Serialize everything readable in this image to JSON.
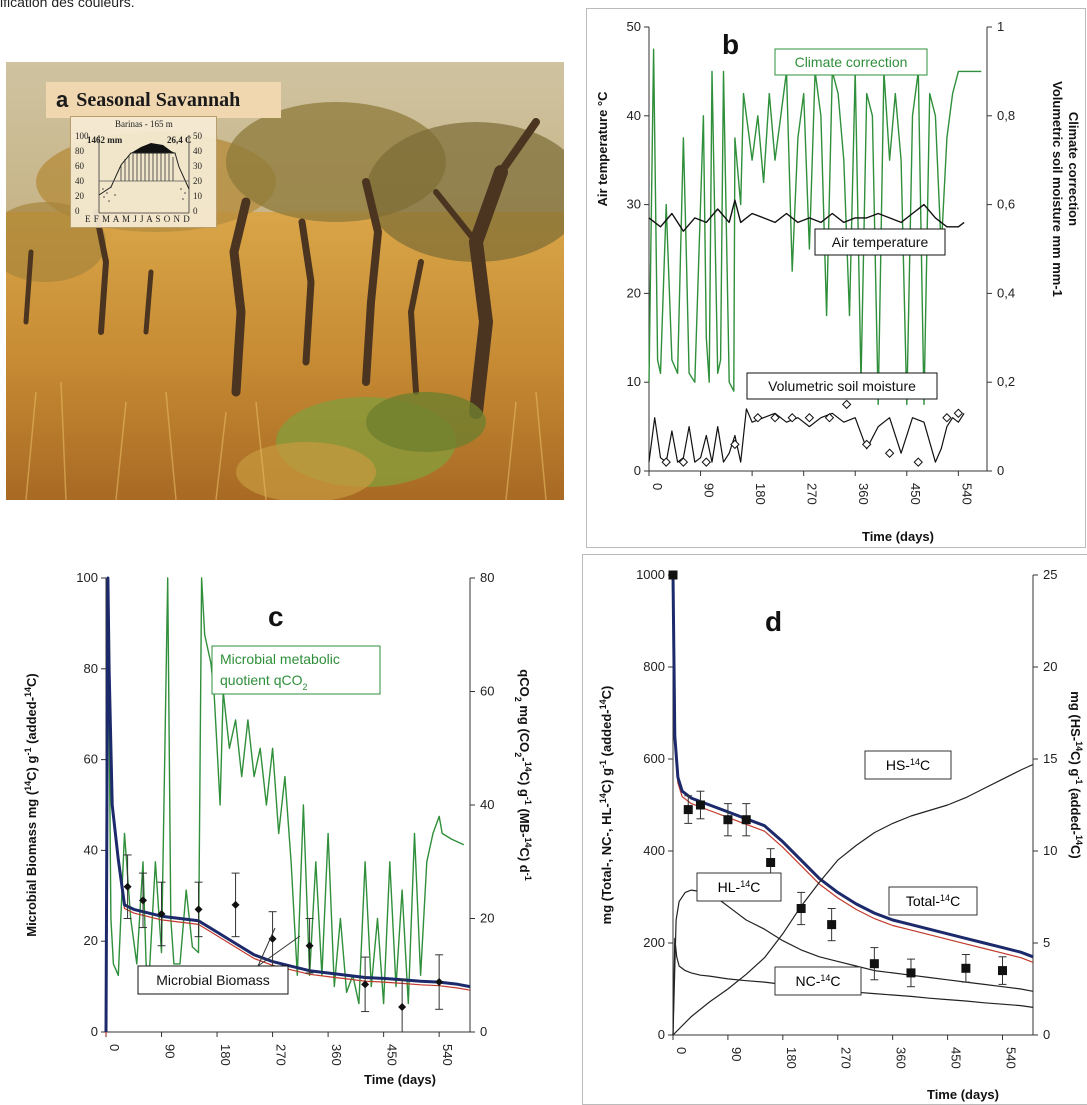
{
  "caption": "ification des couleurs.",
  "panel_a": {
    "letter": "a",
    "title": "Seasonal Savannah",
    "climate_station": "Barinas - 165 m",
    "climate_precip": "1462 mm",
    "climate_temp": "26,4 C",
    "climate_left_ticks": [
      "100",
      "80",
      "60",
      "40",
      "20",
      "0"
    ],
    "climate_right_ticks": [
      "50",
      "40",
      "30",
      "20",
      "10",
      "0"
    ],
    "climate_months": "E F M A M J J A S O N D"
  },
  "chart_data": [
    {
      "id": "b",
      "type": "line",
      "letter": "b",
      "xlabel": "Time (days)",
      "ylabel_left": "Air temperature °C",
      "ylabel_right_1": "Volumetric soil moisture mm mm-1",
      "ylabel_right_2": "Climate correction",
      "xlim": [
        0,
        590
      ],
      "ylim_left": [
        0,
        50
      ],
      "ylim_right": [
        0,
        1
      ],
      "xticks": [
        "0",
        "90",
        "180",
        "270",
        "360",
        "450",
        "540"
      ],
      "yticks_left": [
        "0",
        "10",
        "20",
        "30",
        "40",
        "50"
      ],
      "yticks_right": [
        "0",
        "0,2",
        "0,4",
        "0,6",
        "0,8",
        "1"
      ],
      "colors": {
        "climate": "#2f8f3a",
        "temperature": "#111111",
        "moisture": "#111111"
      },
      "labels": {
        "climate": "Climate correction",
        "temperature": "Air temperature",
        "moisture": "Volumetric soil moisture"
      },
      "series": [
        {
          "key": "climate",
          "x": [
            0,
            8,
            15,
            20,
            30,
            40,
            50,
            60,
            65,
            70,
            80,
            95,
            100,
            105,
            110,
            120,
            125,
            130,
            140,
            148,
            150,
            160,
            165,
            170,
            175,
            180,
            190,
            200,
            210,
            220,
            230,
            240,
            250,
            260,
            270,
            280,
            290,
            300,
            310,
            320,
            330,
            340,
            350,
            360,
            370,
            380,
            390,
            400,
            410,
            420,
            430,
            440,
            450,
            460,
            470,
            480,
            490,
            500,
            510,
            520,
            530,
            540,
            545,
            560,
            580
          ],
          "y": [
            0.2,
            0.95,
            0.25,
            0.22,
            0.6,
            0.25,
            0.22,
            0.75,
            0.5,
            0.22,
            0.2,
            0.8,
            0.3,
            0.2,
            0.9,
            0.22,
            0.25,
            0.9,
            0.2,
            0.18,
            0.75,
            0.6,
            0.85,
            0.8,
            0.75,
            0.7,
            0.8,
            0.65,
            0.85,
            0.7,
            0.8,
            0.9,
            0.45,
            0.75,
            0.85,
            0.5,
            0.9,
            0.8,
            0.35,
            0.9,
            0.85,
            0.7,
            0.35,
            0.9,
            0.2,
            0.85,
            0.8,
            0.15,
            0.9,
            0.7,
            0.85,
            0.7,
            0.15,
            0.8,
            0.9,
            0.15,
            0.85,
            0.8,
            0.5,
            0.75,
            0.85,
            0.9,
            0.9,
            0.9,
            0.9
          ]
        },
        {
          "key": "temperature",
          "x": [
            0,
            20,
            40,
            60,
            80,
            100,
            120,
            140,
            150,
            160,
            180,
            200,
            220,
            240,
            260,
            280,
            300,
            320,
            340,
            360,
            380,
            400,
            420,
            440,
            460,
            480,
            500,
            520,
            540,
            550
          ],
          "y": [
            28.5,
            27.5,
            29,
            27,
            28.5,
            28,
            29.5,
            28,
            30.5,
            28,
            29,
            28.5,
            28,
            29,
            28,
            28.5,
            28,
            29,
            28,
            28.5,
            28.5,
            29,
            28.5,
            28,
            29,
            30,
            28.5,
            27.5,
            27.5,
            28
          ]
        },
        {
          "key": "moisture",
          "x": [
            0,
            10,
            20,
            30,
            40,
            50,
            60,
            70,
            80,
            90,
            100,
            110,
            120,
            130,
            140,
            150,
            160,
            170,
            180,
            200,
            220,
            240,
            260,
            280,
            300,
            320,
            340,
            360,
            380,
            400,
            420,
            440,
            460,
            480,
            500,
            510,
            520,
            530,
            540,
            550
          ],
          "y": [
            0.02,
            0.12,
            0.03,
            0.02,
            0.09,
            0.02,
            0.03,
            0.1,
            0.02,
            0.03,
            0.08,
            0.02,
            0.1,
            0.02,
            0.04,
            0.08,
            0.02,
            0.14,
            0.11,
            0.12,
            0.13,
            0.11,
            0.12,
            0.1,
            0.12,
            0.13,
            0.11,
            0.12,
            0.05,
            0.1,
            0.12,
            0.04,
            0.12,
            0.11,
            0.02,
            0.05,
            0.1,
            0.12,
            0.11,
            0.13
          ]
        }
      ],
      "markers_moisture": {
        "x": [
          30,
          60,
          100,
          150,
          190,
          220,
          250,
          280,
          315,
          345,
          380,
          420,
          470,
          520,
          540
        ],
        "y": [
          0.02,
          0.02,
          0.02,
          0.06,
          0.12,
          0.12,
          0.12,
          0.12,
          0.12,
          0.15,
          0.06,
          0.04,
          0.02,
          0.12,
          0.13
        ]
      }
    },
    {
      "id": "c",
      "type": "line",
      "letter": "c",
      "xlabel": "Time (days)",
      "ylabel_left": "Microbial Biomass mg (14C) g-1 (added-14C)",
      "ylabel_right": "qCO2 mg (CO2-14C) g-1 (MB-14C) d-1",
      "xlim": [
        0,
        590
      ],
      "ylim_left": [
        0,
        100
      ],
      "ylim_right": [
        0,
        80
      ],
      "xticks": [
        "0",
        "90",
        "180",
        "270",
        "360",
        "450",
        "540"
      ],
      "yticks_left": [
        "0",
        "20",
        "40",
        "60",
        "80",
        "100"
      ],
      "yticks_right": [
        "0",
        "20",
        "40",
        "60",
        "80"
      ],
      "colors": {
        "qco2": "#2f8f3a",
        "biomass": "#1c2a6b",
        "biomass_alt": "#c0392b"
      },
      "labels": {
        "qco2": "Microbial metabolic quotient qCO2",
        "biomass": "Microbial Biomass"
      },
      "series": [
        {
          "key": "qco2",
          "x": [
            0,
            3,
            8,
            12,
            20,
            30,
            40,
            50,
            60,
            65,
            70,
            80,
            90,
            100,
            105,
            110,
            120,
            130,
            140,
            150,
            155,
            160,
            170,
            175,
            180,
            185,
            190,
            200,
            210,
            220,
            230,
            240,
            250,
            260,
            270,
            280,
            290,
            300,
            310,
            320,
            330,
            340,
            350,
            360,
            370,
            380,
            390,
            400,
            410,
            420,
            430,
            440,
            450,
            460,
            470,
            480,
            490,
            500,
            510,
            520,
            530,
            540,
            545,
            560,
            580
          ],
          "y": [
            0,
            80,
            20,
            12,
            10,
            35,
            20,
            12,
            30,
            12,
            10,
            30,
            14,
            80,
            20,
            12,
            12,
            25,
            15,
            14,
            80,
            70,
            65,
            60,
            50,
            40,
            60,
            50,
            55,
            45,
            55,
            45,
            50,
            40,
            50,
            35,
            45,
            30,
            10,
            40,
            10,
            30,
            10,
            35,
            8,
            20,
            7,
            10,
            5,
            30,
            8,
            20,
            5,
            30,
            8,
            25,
            5,
            35,
            10,
            30,
            35,
            38,
            35,
            34,
            33
          ]
        },
        {
          "key": "biomass",
          "x": [
            0,
            3,
            5,
            10,
            20,
            30,
            45,
            60,
            90,
            120,
            150,
            180,
            210,
            240,
            270,
            300,
            330,
            360,
            390,
            420,
            450,
            480,
            510,
            540,
            570,
            590
          ],
          "y": [
            0,
            100,
            80,
            50,
            38,
            28,
            27,
            26.5,
            25.5,
            25,
            24.5,
            22,
            19.5,
            17,
            15.5,
            14.5,
            13.5,
            13,
            12.5,
            12,
            11.8,
            11.5,
            11.2,
            11,
            10.5,
            10
          ]
        }
      ],
      "errorbars": {
        "x": [
          35,
          60,
          90,
          150,
          210,
          270,
          330,
          420,
          480,
          540
        ],
        "y": [
          32,
          29,
          26,
          27,
          28,
          20.5,
          19,
          10.5,
          5.5,
          11
        ],
        "err": [
          7,
          6,
          7,
          6,
          7,
          6,
          6,
          6,
          6,
          6
        ]
      }
    },
    {
      "id": "d",
      "type": "line",
      "letter": "d",
      "xlabel": "Time (days)",
      "ylabel_left": "mg (Total-, NC-, HL-14C) g-1 (added-14C)",
      "ylabel_right": "mg (HS-14C) g-1 (added-14C)",
      "xlim": [
        0,
        590
      ],
      "ylim_left": [
        0,
        1000
      ],
      "ylim_right": [
        0,
        25
      ],
      "xticks": [
        "0",
        "90",
        "180",
        "270",
        "360",
        "450",
        "540"
      ],
      "yticks_left": [
        "0",
        "200",
        "400",
        "600",
        "800",
        "1000"
      ],
      "yticks_right": [
        "0",
        "5",
        "10",
        "15",
        "20",
        "25"
      ],
      "colors": {
        "total": "#1c2a6b",
        "total_alt": "#c0392b",
        "other": "#222222"
      },
      "labels": {
        "total": "Total-14C",
        "hs": "HS-14C",
        "hl": "HL-14C",
        "nc": "NC-14C"
      },
      "series": [
        {
          "key": "total",
          "x": [
            0,
            3,
            8,
            15,
            30,
            60,
            90,
            120,
            150,
            180,
            210,
            240,
            270,
            300,
            330,
            360,
            390,
            420,
            450,
            480,
            510,
            540,
            570,
            590
          ],
          "y": [
            1000,
            650,
            560,
            530,
            515,
            500,
            485,
            470,
            455,
            420,
            380,
            340,
            310,
            285,
            265,
            250,
            240,
            230,
            220,
            210,
            200,
            190,
            180,
            170
          ]
        },
        {
          "key": "hl",
          "x": [
            0,
            5,
            10,
            20,
            30,
            45,
            60,
            80,
            100,
            120,
            150,
            180,
            210,
            240,
            270,
            300,
            330,
            360,
            390,
            420,
            450,
            480,
            510,
            540,
            570,
            590
          ],
          "y": [
            0,
            250,
            290,
            310,
            315,
            312,
            305,
            290,
            270,
            250,
            230,
            205,
            185,
            170,
            160,
            150,
            140,
            135,
            130,
            125,
            120,
            115,
            110,
            105,
            100,
            95
          ]
        },
        {
          "key": "nc",
          "x": [
            0,
            3,
            6,
            10,
            20,
            30,
            45,
            60,
            90,
            120,
            150,
            180,
            210,
            240,
            270,
            300,
            330,
            360,
            390,
            420,
            450,
            480,
            510,
            540,
            570,
            590
          ],
          "y": [
            0,
            210,
            170,
            150,
            140,
            135,
            130,
            128,
            122,
            118,
            115,
            110,
            105,
            100,
            97,
            93,
            90,
            87,
            84,
            80,
            77,
            74,
            70,
            67,
            64,
            60
          ]
        },
        {
          "key": "hs",
          "x": [
            0,
            30,
            60,
            90,
            120,
            150,
            180,
            210,
            240,
            270,
            300,
            330,
            360,
            390,
            420,
            450,
            480,
            510,
            540,
            570,
            590
          ],
          "y": [
            0,
            1,
            1.8,
            2.5,
            3.3,
            4.2,
            5.5,
            7,
            8.3,
            9.5,
            10.3,
            11,
            11.5,
            11.9,
            12.2,
            12.5,
            12.9,
            13.4,
            13.9,
            14.4,
            14.7
          ]
        }
      ],
      "errorbars": {
        "x": [
          25,
          45,
          90,
          120,
          160,
          210,
          260,
          330,
          390,
          480,
          540
        ],
        "y": [
          490,
          500,
          468,
          468,
          375,
          275,
          240,
          155,
          135,
          145,
          140
        ],
        "err": [
          30,
          30,
          35,
          35,
          30,
          35,
          35,
          35,
          30,
          30,
          30
        ]
      }
    }
  ]
}
